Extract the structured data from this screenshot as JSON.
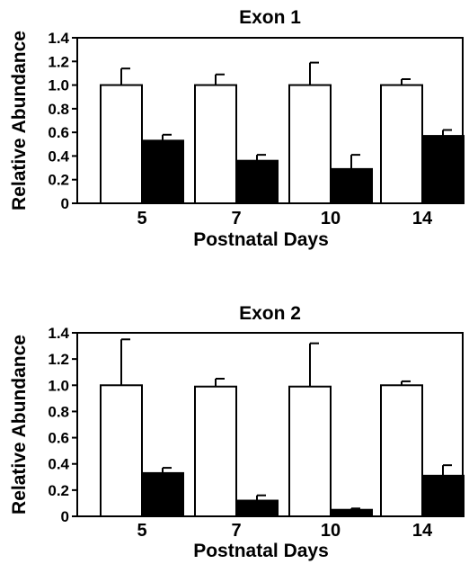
{
  "chart_data": [
    {
      "type": "bar",
      "title": "Exon 1",
      "xlabel": "Postnatal Days",
      "ylabel": "Relative Abundance",
      "categories": [
        "5",
        "7",
        "10",
        "14"
      ],
      "ylim": [
        0,
        1.4
      ],
      "yticks": [
        "0",
        "0.2",
        "0.4",
        "0.6",
        "0.8",
        "1.0",
        "1.2",
        "1.4"
      ],
      "grid": false,
      "series": [
        {
          "color": "#ffffff",
          "values": [
            1.0,
            1.0,
            1.0,
            1.0
          ],
          "errors": [
            0.14,
            0.09,
            0.19,
            0.05
          ]
        },
        {
          "color": "#000000",
          "values": [
            0.53,
            0.36,
            0.29,
            0.57
          ],
          "errors": [
            0.05,
            0.05,
            0.12,
            0.05
          ]
        }
      ]
    },
    {
      "type": "bar",
      "title": "Exon 2",
      "xlabel": "Postnatal Days",
      "ylabel": "Relative Abundance",
      "categories": [
        "5",
        "7",
        "10",
        "14"
      ],
      "ylim": [
        0,
        1.4
      ],
      "yticks": [
        "0",
        "0.2",
        "0.4",
        "0.6",
        "0.8",
        "1.0",
        "1.2",
        "1.4"
      ],
      "grid": false,
      "series": [
        {
          "color": "#ffffff",
          "values": [
            1.0,
            0.99,
            0.99,
            1.0
          ],
          "errors": [
            0.35,
            0.06,
            0.33,
            0.03
          ]
        },
        {
          "color": "#000000",
          "values": [
            0.33,
            0.12,
            0.05,
            0.31
          ],
          "errors": [
            0.04,
            0.04,
            0.01,
            0.08
          ]
        }
      ]
    }
  ]
}
